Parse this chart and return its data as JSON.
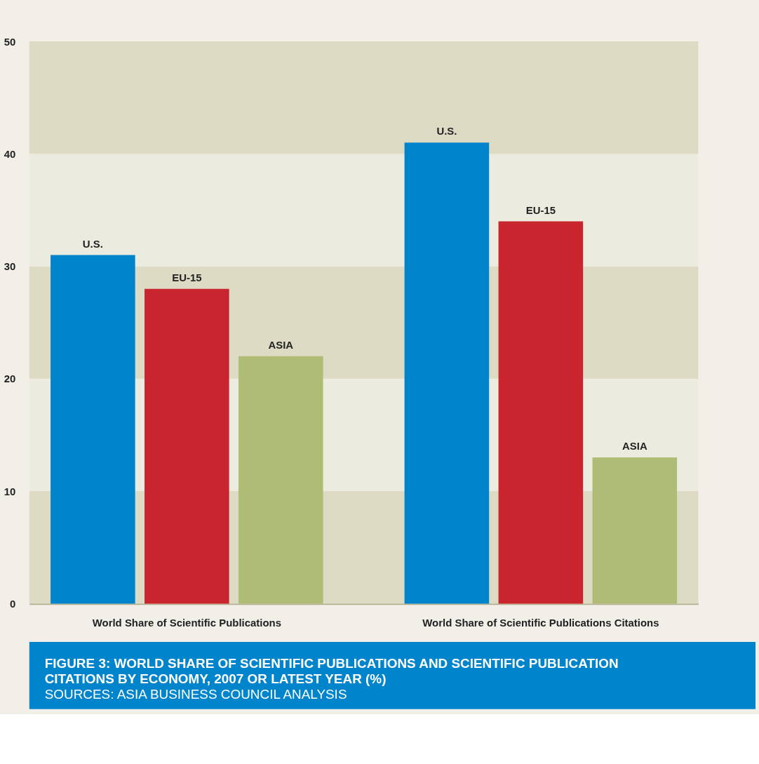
{
  "chart_data": {
    "type": "bar",
    "title": "FIGURE 3: WORLD SHARE OF SCIENTIFIC PUBLICATIONS AND SCIENTIFIC PUBLICATION CITATIONS BY ECONOMY, 2007 OR LATEST YEAR (%)",
    "annotations": [
      "SOURCES: ASIA BUSINESS COUNCIL ANALYSIS"
    ],
    "categories": [
      "World Share of Scientific Publications",
      "World Share of Scientific Publications Citations"
    ],
    "series": [
      {
        "name": "U.S.",
        "color": "#0084cc",
        "values": [
          31,
          41
        ]
      },
      {
        "name": "EU-15",
        "color": "#c9252e",
        "values": [
          28,
          34
        ]
      },
      {
        "name": "ASIA",
        "color": "#afbc75",
        "values": [
          22,
          13
        ]
      }
    ],
    "bands": [
      {
        "axis": "y",
        "from": 0,
        "to": 10,
        "color": "#dddbc3"
      },
      {
        "axis": "y",
        "from": 10,
        "to": 20,
        "color": "#ecebdf"
      },
      {
        "axis": "y",
        "from": 20,
        "to": 30,
        "color": "#dddbc3"
      },
      {
        "axis": "y",
        "from": 30,
        "to": 40,
        "color": "#ecebdf"
      },
      {
        "axis": "y",
        "from": 40,
        "to": 50,
        "color": "#dddbc3"
      }
    ],
    "ylim": [
      0,
      50
    ],
    "yticks": [
      0,
      10,
      20,
      30,
      40,
      50
    ],
    "legend": false
  }
}
